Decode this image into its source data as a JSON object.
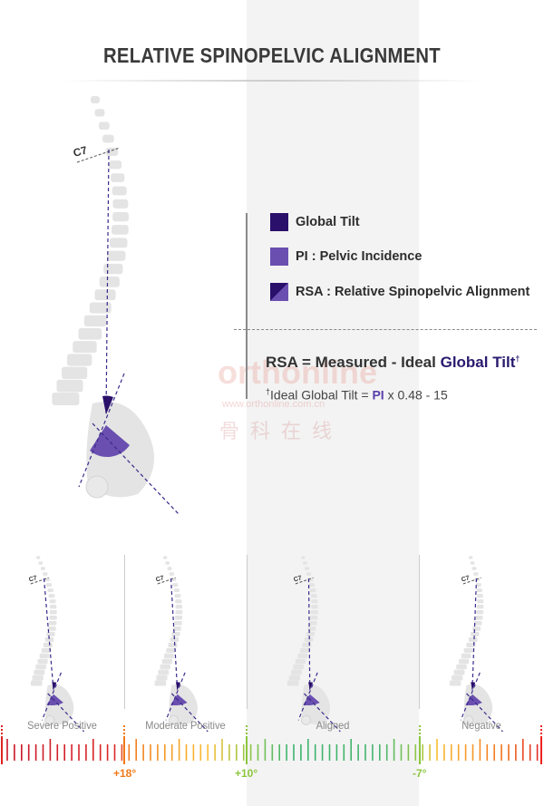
{
  "title": "RELATIVE SPINOPELVIC ALIGNMENT",
  "c7_label": "C7",
  "legend": [
    {
      "label": "Global Tilt",
      "color": "#2a0f6b",
      "icon": "solid-square"
    },
    {
      "label": "PI : Pelvic Incidence",
      "color": "#6a4fb0",
      "icon": "solid-square"
    },
    {
      "label": "RSA : Relative Spinopelvic Alignment",
      "color": "#2a0f6b",
      "color2": "#6a4fb0",
      "icon": "split-square"
    }
  ],
  "formula": {
    "lhs": "RSA = Measured - Ideal",
    "term": "Global Tilt",
    "dagger": "†"
  },
  "footnote": {
    "dagger": "†",
    "prefix": "Ideal Global Tilt = ",
    "pi": "PI",
    "rest": " x 0.48 - 15"
  },
  "watermark": {
    "brand": "orthonline",
    "url": "www.orthonline.com.cn",
    "cn": "骨科在线"
  },
  "categories": [
    "Severe Positive",
    "Moderate Positive",
    "Aligned",
    "Negative"
  ],
  "thresholds": [
    {
      "label": "+18°",
      "color": "#f07a1a"
    },
    {
      "label": "+10°",
      "color": "#8cc63f"
    },
    {
      "label": "-7°",
      "color": "#8cc63f"
    }
  ],
  "colors": {
    "spine": "#e4e4e4",
    "gt": "#2a0f6b",
    "pi": "#6a4fb0",
    "dash": "#3a2a8a"
  }
}
